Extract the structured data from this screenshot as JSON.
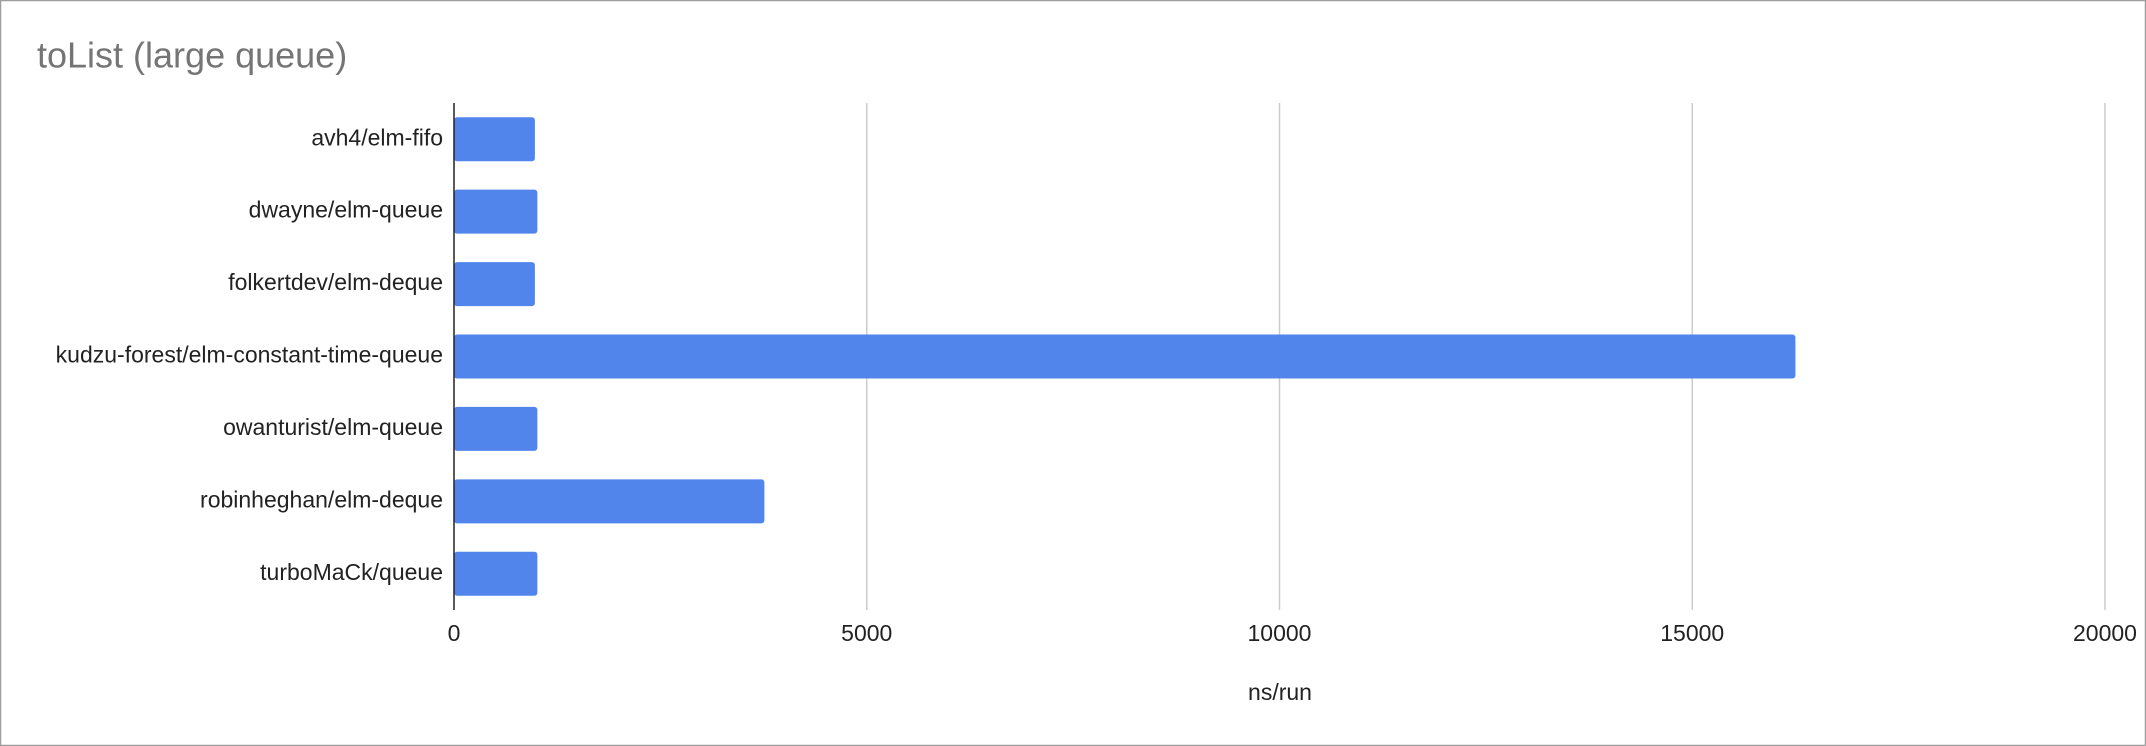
{
  "chart_data": {
    "type": "bar",
    "orientation": "horizontal",
    "title": "toList (large queue)",
    "x_label": "ns/run",
    "categories": [
      "avh4/elm-fifo",
      "dwayne/elm-queue",
      "folkertdev/elm-deque",
      "kudzu-forest/elm-constant-time-queue",
      "owanturist/elm-queue",
      "robinheghan/elm-deque",
      "turboMaCk/queue"
    ],
    "values": [
      980,
      1010,
      980,
      16250,
      1010,
      3760,
      1010
    ],
    "color": "#5185ec",
    "xlim": [
      0,
      20000
    ],
    "xticks": [
      0,
      5000,
      10000,
      15000,
      20000
    ],
    "grid": true
  }
}
